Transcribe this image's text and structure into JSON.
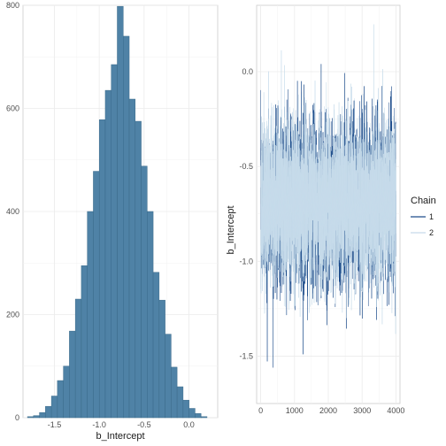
{
  "chart_data": [
    {
      "type": "bar",
      "subtype": "histogram",
      "xlabel": "b_Intercept",
      "ylabel": "",
      "xlim": [
        -1.85,
        0.32
      ],
      "ylim": [
        0,
        800
      ],
      "xticks": [
        -1.5,
        -1.0,
        -0.5,
        0.0
      ],
      "xtick_labels": [
        "-1.5",
        "-1.0",
        "-0.5",
        "0.0"
      ],
      "yticks": [
        0,
        200,
        400,
        600,
        800
      ],
      "ytick_labels": [
        "0",
        "200",
        "400",
        "600",
        "800"
      ],
      "bin_width": 0.0667,
      "bin_start": -1.8,
      "values": [
        2,
        4,
        10,
        22,
        42,
        72,
        100,
        168,
        230,
        295,
        400,
        478,
        578,
        635,
        685,
        798,
        740,
        618,
        575,
        488,
        400,
        282,
        228,
        162,
        98,
        60,
        34,
        18,
        8,
        2
      ],
      "fill_color": "#4f82a6",
      "edge_color": "#3a6a8a",
      "grid": true
    },
    {
      "type": "line",
      "subtype": "trace",
      "xlabel": "",
      "ylabel": "b_Intercept",
      "xlim": [
        -120,
        4120
      ],
      "ylim": [
        -1.75,
        0.35
      ],
      "xticks": [
        0,
        1000,
        2000,
        3000,
        4000
      ],
      "xtick_labels": [
        "0",
        "1000",
        "2000",
        "3000",
        "4000"
      ],
      "yticks": [
        -1.5,
        -1.0,
        -0.5,
        0.0
      ],
      "ytick_labels": [
        "-1.5",
        "-1.0",
        "-0.5",
        "0.0"
      ],
      "n_iterations": 4000,
      "mean": -0.68,
      "sd": 0.21,
      "grid": true,
      "legend": {
        "title": "Chain",
        "position": "right",
        "entries": [
          {
            "label": "1",
            "color": "#1f4e8c"
          },
          {
            "label": "2",
            "color": "#c6dbea"
          }
        ]
      },
      "series": [
        {
          "name": "1",
          "color": "#1f4e8c"
        },
        {
          "name": "2",
          "color": "#c6dbea"
        }
      ]
    }
  ]
}
